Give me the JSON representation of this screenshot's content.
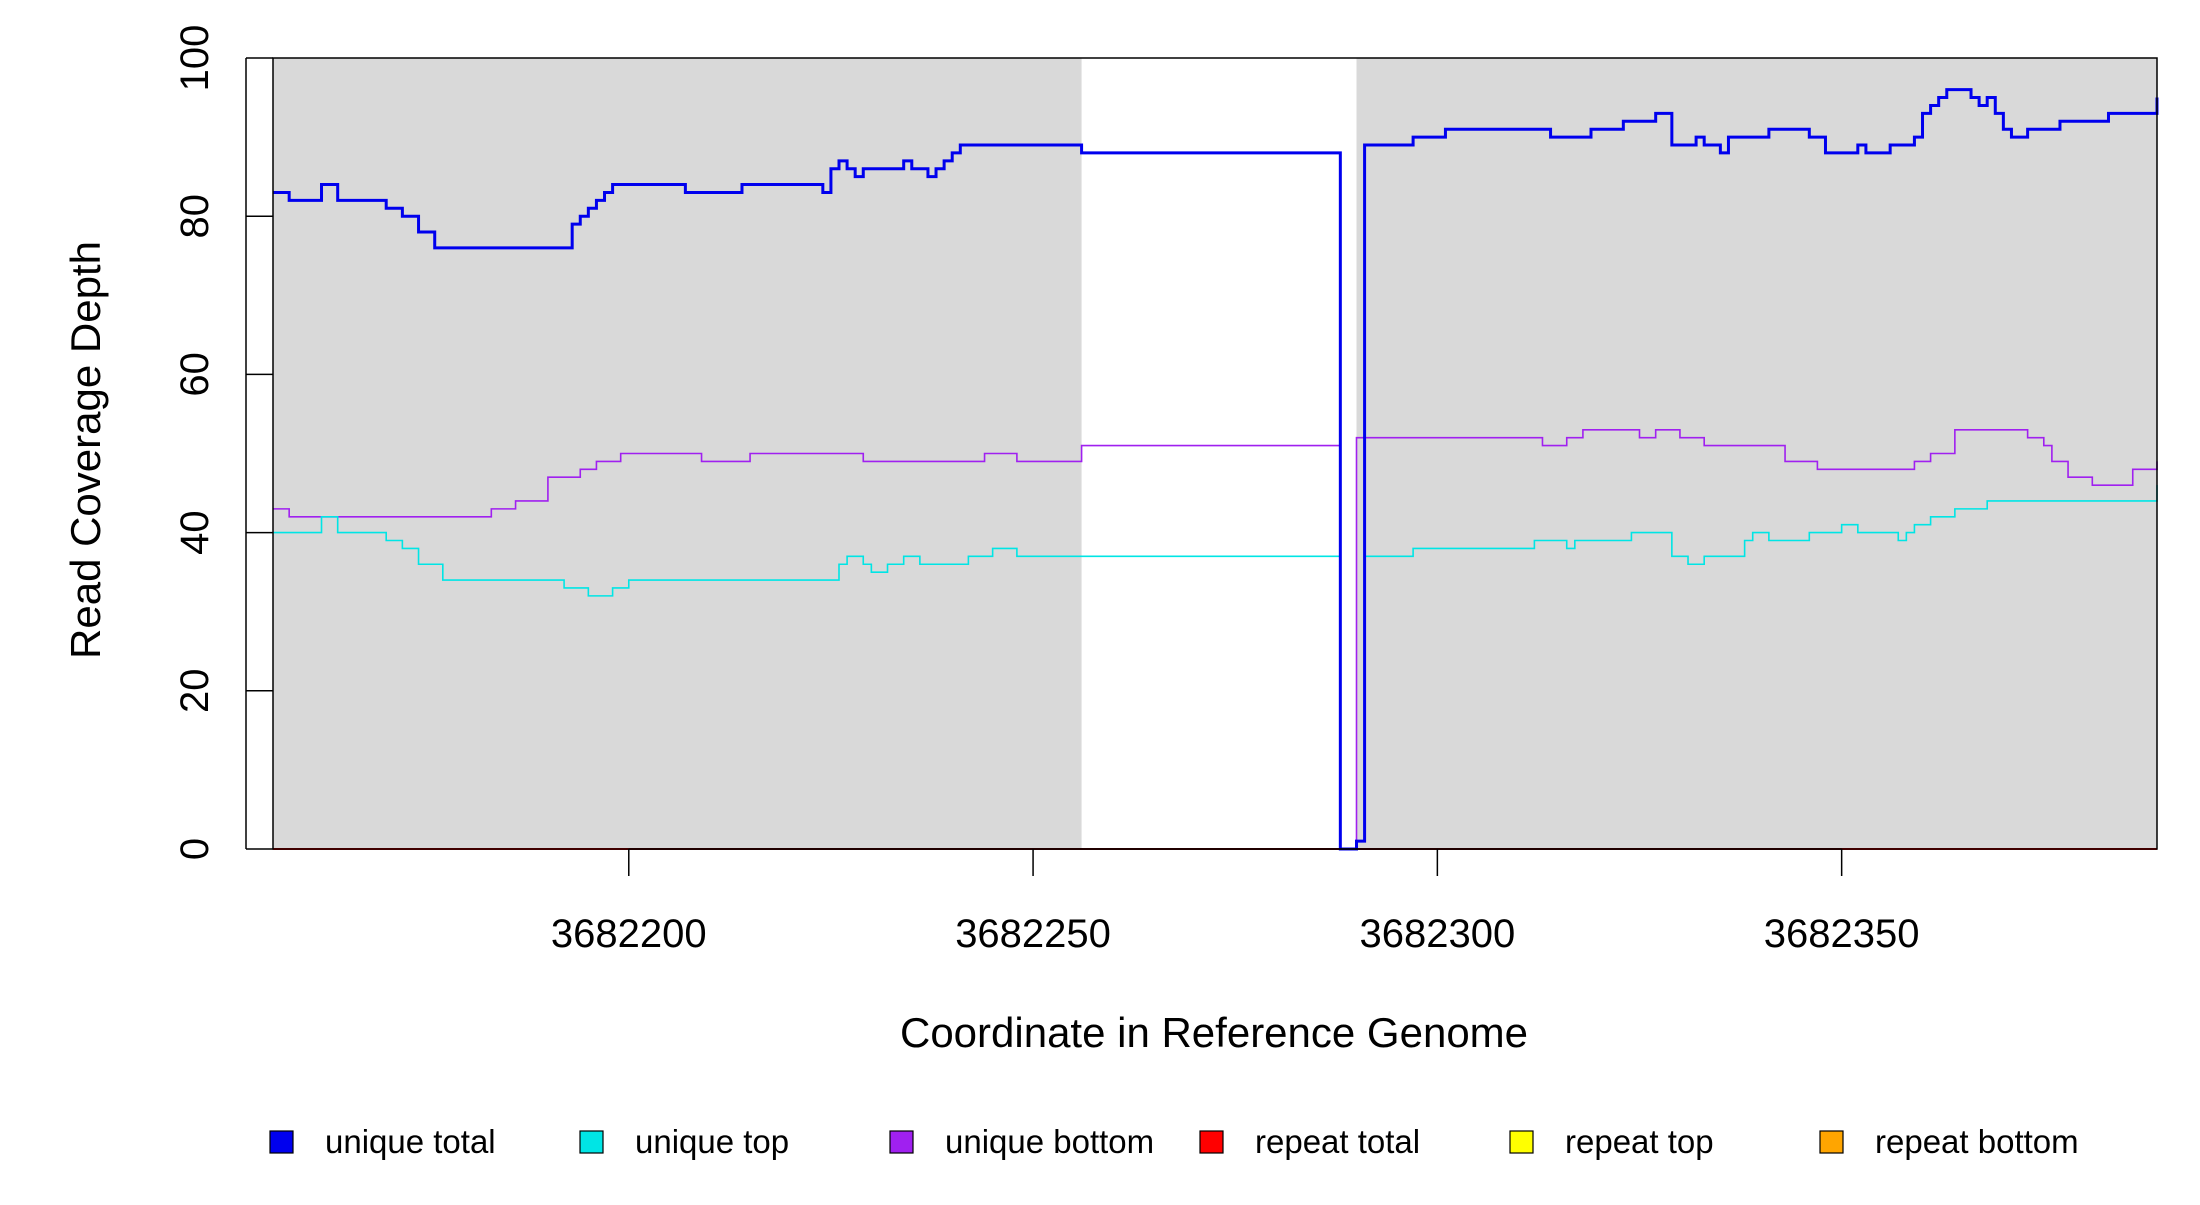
{
  "chart_data": {
    "type": "line",
    "title": "",
    "xlabel": "Coordinate in Reference Genome",
    "ylabel": "Read Coverage Depth",
    "xlim": [
      3682156,
      3682389
    ],
    "ylim": [
      0,
      100
    ],
    "xticks": [
      3682200,
      3682250,
      3682300,
      3682350
    ],
    "xtick_labels": [
      "3682200",
      "3682250",
      "3682300",
      "3682350"
    ],
    "yticks": [
      0,
      20,
      40,
      60,
      80,
      100
    ],
    "ytick_labels": [
      "0",
      "20",
      "40",
      "60",
      "80",
      "100"
    ],
    "grid": false,
    "background_color": "#d9d9d9",
    "shaded_regions": [
      {
        "x": [
          3682156,
          3682256
        ]
      },
      {
        "x": [
          3682290,
          3682389
        ]
      }
    ],
    "legend_position": "bottom",
    "series": [
      {
        "name": "unique total",
        "color": "#0000ee",
        "x": [
          3682156,
          3682158,
          3682162,
          3682164,
          3682170,
          3682172,
          3682174,
          3682176,
          3682178,
          3682193,
          3682194,
          3682195,
          3682196,
          3682197,
          3682198,
          3682199,
          3682207,
          3682214,
          3682224,
          3682225,
          3682226,
          3682227,
          3682228,
          3682229,
          3682230,
          3682234,
          3682235,
          3682236,
          3682237,
          3682238,
          3682239,
          3682240,
          3682241,
          3682256,
          3682288,
          3682290,
          3682291,
          3682297,
          3682301,
          3682314,
          3682316,
          3682319,
          3682323,
          3682327,
          3682329,
          3682331,
          3682332,
          3682333,
          3682335,
          3682336,
          3682341,
          3682346,
          3682348,
          3682352,
          3682353,
          3682354,
          3682356,
          3682359,
          3682360,
          3682361,
          3682362,
          3682363,
          3682366,
          3682367,
          3682368,
          3682369,
          3682370,
          3682371,
          3682373,
          3682377,
          3682383,
          3682389
        ],
        "y": [
          83,
          82,
          84,
          82,
          81,
          80,
          78,
          76,
          76,
          79,
          80,
          81,
          82,
          83,
          84,
          84,
          83,
          84,
          83,
          86,
          87,
          86,
          85,
          86,
          86,
          87,
          86,
          86,
          85,
          86,
          87,
          88,
          89,
          88,
          0,
          1,
          89,
          90,
          91,
          90,
          90,
          91,
          92,
          93,
          89,
          89,
          90,
          89,
          88,
          90,
          91,
          90,
          88,
          89,
          88,
          88,
          89,
          90,
          93,
          94,
          95,
          96,
          95,
          94,
          95,
          93,
          91,
          90,
          91,
          92,
          93,
          95
        ]
      },
      {
        "name": "unique top",
        "color": "#00e5e5",
        "x": [
          3682156,
          3682162,
          3682164,
          3682170,
          3682172,
          3682174,
          3682177,
          3682192,
          3682195,
          3682198,
          3682200,
          3682202,
          3682226,
          3682227,
          3682229,
          3682230,
          3682232,
          3682234,
          3682236,
          3682239,
          3682242,
          3682245,
          3682248,
          3682256,
          3682288,
          3682290,
          3682291,
          3682297,
          3682312,
          3682316,
          3682317,
          3682324,
          3682329,
          3682331,
          3682333,
          3682338,
          3682339,
          3682341,
          3682346,
          3682350,
          3682352,
          3682356,
          3682357,
          3682358,
          3682359,
          3682361,
          3682364,
          3682368,
          3682377,
          3682389
        ],
        "y": [
          40,
          42,
          40,
          39,
          38,
          36,
          34,
          33,
          32,
          33,
          34,
          34,
          36,
          37,
          36,
          35,
          36,
          37,
          36,
          36,
          37,
          38,
          37,
          37,
          0,
          1,
          37,
          38,
          39,
          38,
          39,
          40,
          37,
          36,
          37,
          39,
          40,
          39,
          40,
          41,
          40,
          40,
          39,
          40,
          41,
          42,
          43,
          44,
          44,
          46
        ]
      },
      {
        "name": "unique bottom",
        "color": "#a020f0",
        "x": [
          3682156,
          3682158,
          3682168,
          3682180,
          3682183,
          3682186,
          3682190,
          3682194,
          3682196,
          3682199,
          3682203,
          3682209,
          3682215,
          3682226,
          3682229,
          3682244,
          3682246,
          3682248,
          3682256,
          3682288,
          3682290,
          3682301,
          3682313,
          3682316,
          3682318,
          3682325,
          3682327,
          3682330,
          3682333,
          3682336,
          3682343,
          3682347,
          3682358,
          3682359,
          3682361,
          3682364,
          3682373,
          3682375,
          3682376,
          3682378,
          3682381,
          3682386,
          3682389
        ],
        "y": [
          43,
          42,
          42,
          42,
          43,
          44,
          47,
          48,
          49,
          50,
          50,
          49,
          50,
          50,
          49,
          50,
          50,
          49,
          51,
          0,
          52,
          52,
          51,
          52,
          53,
          52,
          53,
          52,
          51,
          51,
          49,
          48,
          48,
          49,
          50,
          53,
          52,
          51,
          49,
          47,
          46,
          48,
          49
        ]
      },
      {
        "name": "repeat total",
        "color": "#ff0000",
        "x": [
          3682156,
          3682389
        ],
        "y": [
          0,
          0
        ]
      },
      {
        "name": "repeat top",
        "color": "#ffff00",
        "x": [
          3682156,
          3682389
        ],
        "y": [
          0,
          0
        ]
      },
      {
        "name": "repeat bottom",
        "color": "#ffa500",
        "x": [
          3682156,
          3682389
        ],
        "y": [
          0,
          0
        ]
      }
    ]
  }
}
